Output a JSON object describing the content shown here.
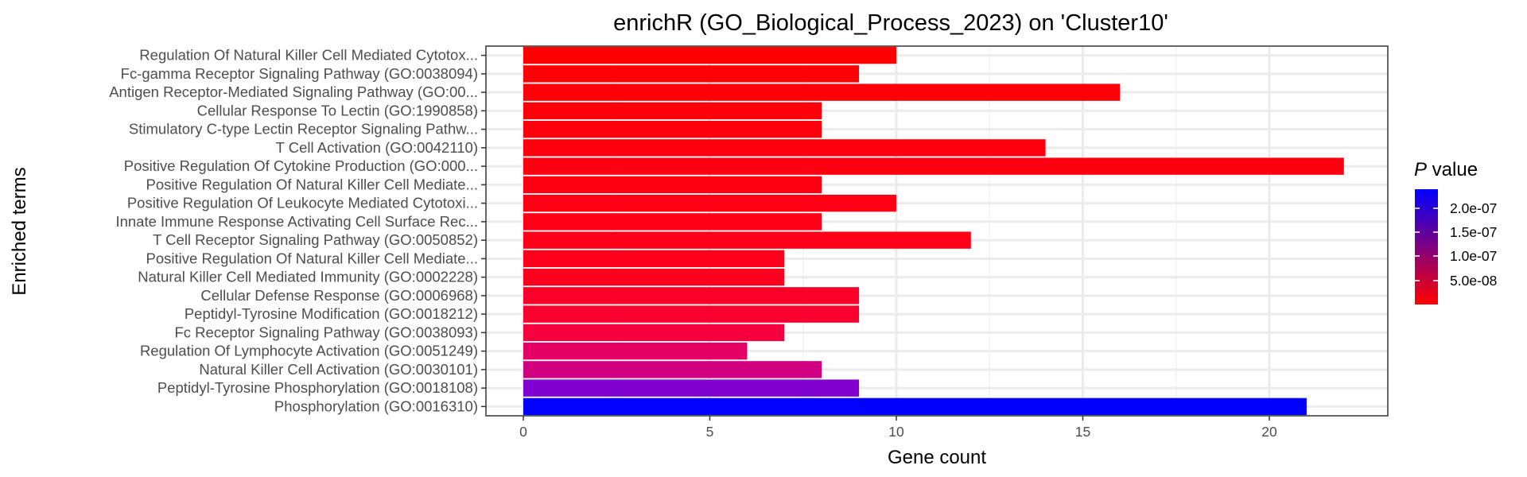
{
  "chart_data": {
    "type": "bar",
    "orientation": "horizontal",
    "title": "enrichR (GO_Biological_Process_2023) on 'Cluster10'",
    "xlabel": "Gene count",
    "ylabel": "Enriched terms",
    "xlim": [
      0,
      22
    ],
    "x_ticks": [
      "0",
      "5",
      "10",
      "15",
      "20"
    ],
    "grid": true,
    "legend": {
      "title_italic": "P",
      "title_rest": " value",
      "position": "right",
      "labels": [
        "2.0e-07",
        "1.5e-07",
        "1.0e-07",
        "5.0e-08"
      ],
      "color_low": "#ff0000",
      "color_high": "#0000ff"
    },
    "categories": [
      "Regulation Of Natural Killer Cell Mediated Cytotox...",
      "Fc-gamma Receptor Signaling Pathway (GO:0038094)",
      "Antigen Receptor-Mediated Signaling Pathway (GO:00...",
      "Cellular Response To Lectin (GO:1990858)",
      "Stimulatory C-type Lectin Receptor Signaling Pathw...",
      "T Cell Activation (GO:0042110)",
      "Positive Regulation Of Cytokine Production (GO:000...",
      "Positive Regulation Of Natural Killer Cell Mediate...",
      "Positive Regulation Of Leukocyte Mediated Cytotoxi...",
      "Innate Immune Response Activating Cell Surface Rec...",
      "T Cell Receptor Signaling Pathway (GO:0050852)",
      "Positive Regulation Of Natural Killer Cell Mediate...",
      "Natural Killer Cell Mediated Immunity (GO:0002228)",
      "Cellular Defense Response (GO:0006968)",
      "Peptidyl-Tyrosine Modification (GO:0018212)",
      "Fc Receptor Signaling Pathway (GO:0038093)",
      "Regulation Of Lymphocyte Activation (GO:0051249)",
      "Natural Killer Cell Activation (GO:0030101)",
      "Peptidyl-Tyrosine Phosphorylation (GO:0018108)",
      "Phosphorylation (GO:0016310)"
    ],
    "values": [
      10,
      9,
      16,
      8,
      8,
      14,
      22,
      8,
      10,
      8,
      12,
      7,
      7,
      9,
      9,
      7,
      6,
      8,
      9,
      21
    ],
    "colors": [
      "#ff0000",
      "#ff0004",
      "#ff0008",
      "#ff000a",
      "#ff000c",
      "#ff000e",
      "#ff0010",
      "#ff0012",
      "#ff0014",
      "#ff0016",
      "#ff0018",
      "#fe001c",
      "#fd0020",
      "#fb0028",
      "#fa002e",
      "#f70040",
      "#e60064",
      "#d00080",
      "#8000d0",
      "#0000ff"
    ]
  }
}
